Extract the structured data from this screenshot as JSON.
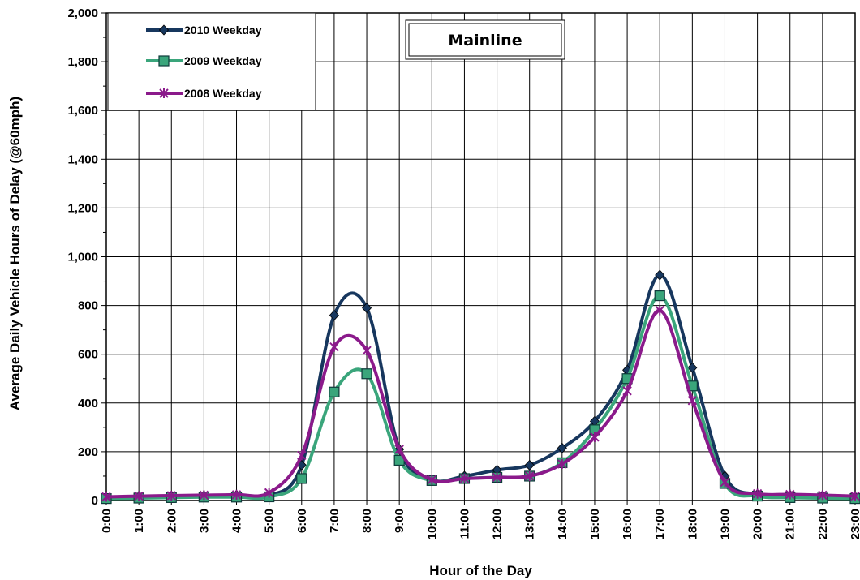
{
  "chart_data": {
    "type": "line",
    "title": "",
    "annotation": "Mainline",
    "xlabel": "Hour of the Day",
    "ylabel": "Average Daily Vehicle Hours of Delay (@60mph)",
    "categories": [
      "0:00",
      "1:00",
      "2:00",
      "3:00",
      "4:00",
      "5:00",
      "6:00",
      "7:00",
      "8:00",
      "9:00",
      "10:00",
      "11:00",
      "12:00",
      "13:00",
      "14:00",
      "15:00",
      "16:00",
      "17:00",
      "18:00",
      "19:00",
      "20:00",
      "21:00",
      "22:00",
      "23:00"
    ],
    "ylim": [
      0,
      2000
    ],
    "yticks": [
      0,
      200,
      400,
      600,
      800,
      1000,
      1200,
      1400,
      1600,
      1800,
      2000
    ],
    "ytick_labels": [
      "0",
      "200",
      "400",
      "600",
      "800",
      "1,000",
      "1,200",
      "1,400",
      "1,600",
      "1,800",
      "2,000"
    ],
    "grid": true,
    "legend_position": "top-left",
    "series": [
      {
        "name": "2010 Weekday",
        "color": "#17375e",
        "marker": "diamond",
        "values": [
          12,
          15,
          18,
          20,
          22,
          20,
          145,
          760,
          790,
          210,
          85,
          100,
          125,
          145,
          215,
          325,
          535,
          925,
          545,
          100,
          25,
          22,
          20,
          15
        ]
      },
      {
        "name": "2009 Weekday",
        "color": "#3aa57b",
        "marker": "square",
        "values": [
          8,
          10,
          12,
          14,
          14,
          15,
          90,
          445,
          520,
          165,
          82,
          90,
          95,
          100,
          155,
          290,
          500,
          840,
          470,
          70,
          18,
          12,
          10,
          8
        ]
      },
      {
        "name": "2008 Weekday",
        "color": "#8b1a8b",
        "marker": "star",
        "values": [
          15,
          18,
          20,
          22,
          24,
          32,
          185,
          630,
          615,
          210,
          85,
          90,
          95,
          100,
          150,
          260,
          450,
          780,
          410,
          75,
          28,
          25,
          22,
          18
        ]
      }
    ]
  }
}
